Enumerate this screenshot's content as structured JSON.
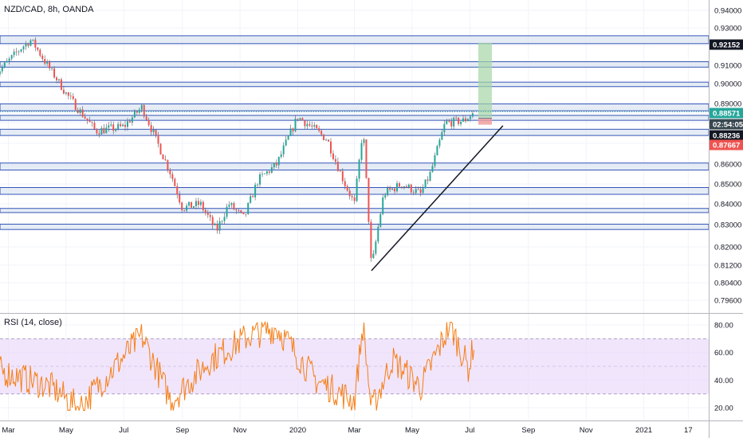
{
  "header": {
    "title": "NZD/CAD, 8h, OANDA"
  },
  "rsi_pane": {
    "title": "RSI (14, close)"
  },
  "colors": {
    "up": "#26a69a",
    "down": "#ef5350",
    "zone_fill": "#dce6f2",
    "zone_border": "#3656b8",
    "rsi_line": "#f57f17",
    "rsi_band": "#ecdcfb",
    "tag_green": "#26a69a",
    "tag_red": "#ef5350",
    "tag_black": "#131722",
    "tag_dark": "#37474f"
  },
  "chart_data": [
    {
      "type": "candlestick",
      "symbol": "NZD/CAD",
      "timeframe": "8h",
      "source": "OANDA",
      "x_ticks": [
        "Mar",
        "May",
        "Jul",
        "Sep",
        "Nov",
        "2020",
        "Mar",
        "May",
        "Jul",
        "Sep",
        "Nov",
        "2021",
        "17"
      ],
      "y_ticks": [
        "0.94000",
        "0.93000",
        "0.92000",
        "0.91000",
        "0.90000",
        "0.89000",
        "0.88000",
        "0.87000",
        "0.86000",
        "0.85000",
        "0.84000",
        "0.83000",
        "0.82000",
        "0.81200",
        "0.80400",
        "0.79600"
      ],
      "y_tick_values": [
        0.94,
        0.93,
        0.92,
        0.91,
        0.9,
        0.89,
        0.88,
        0.87,
        0.86,
        0.85,
        0.84,
        0.83,
        0.82,
        0.812,
        0.804,
        0.796
      ],
      "price_tags": [
        {
          "label": "0.92152",
          "value": 0.92152,
          "style": "black"
        },
        {
          "label": "0.88571",
          "value": 0.88571,
          "style": "green"
        },
        {
          "label": "02:54:05",
          "value": 0.8816,
          "style": "dark"
        },
        {
          "label": "0.88236",
          "value": 0.88236,
          "style": "black"
        },
        {
          "label": "0.87667",
          "value": 0.87667,
          "style": "red"
        }
      ],
      "zones": [
        {
          "from": 0.921,
          "to": 0.9255
        },
        {
          "from": 0.909,
          "to": 0.9118
        },
        {
          "from": 0.8985,
          "to": 0.9008
        },
        {
          "from": 0.8862,
          "to": 0.8898
        },
        {
          "from": 0.8812,
          "to": 0.8838
        },
        {
          "from": 0.8738,
          "to": 0.8768
        },
        {
          "from": 0.857,
          "to": 0.8605
        },
        {
          "from": 0.8448,
          "to": 0.8482
        },
        {
          "from": 0.8358,
          "to": 0.8378
        },
        {
          "from": 0.8278,
          "to": 0.8302
        }
      ],
      "trendline": {
        "from": {
          "date": "2020-03-19",
          "value": 0.8095
        },
        "to": {
          "date": "2020-08-05",
          "value": 0.8785
        }
      },
      "position": {
        "entry": 0.8823,
        "target": 0.9215,
        "stop": 0.879
      },
      "key_closes": [
        {
          "date": "2019-02-15",
          "value": 0.905
        },
        {
          "date": "2019-03-15",
          "value": 0.919
        },
        {
          "date": "2019-03-25",
          "value": 0.923
        },
        {
          "date": "2019-05-01",
          "value": 0.895
        },
        {
          "date": "2019-06-01",
          "value": 0.876
        },
        {
          "date": "2019-07-01",
          "value": 0.878
        },
        {
          "date": "2019-07-20",
          "value": 0.888
        },
        {
          "date": "2019-08-20",
          "value": 0.855
        },
        {
          "date": "2019-09-01",
          "value": 0.838
        },
        {
          "date": "2019-09-20",
          "value": 0.84
        },
        {
          "date": "2019-10-07",
          "value": 0.827
        },
        {
          "date": "2019-10-20",
          "value": 0.84
        },
        {
          "date": "2019-11-05",
          "value": 0.833
        },
        {
          "date": "2019-11-20",
          "value": 0.852
        },
        {
          "date": "2019-12-10",
          "value": 0.86
        },
        {
          "date": "2020-01-01",
          "value": 0.883
        },
        {
          "date": "2020-02-01",
          "value": 0.872
        },
        {
          "date": "2020-02-20",
          "value": 0.85
        },
        {
          "date": "2020-03-01",
          "value": 0.84
        },
        {
          "date": "2020-03-10",
          "value": 0.878
        },
        {
          "date": "2020-03-19",
          "value": 0.81
        },
        {
          "date": "2020-04-01",
          "value": 0.845
        },
        {
          "date": "2020-04-20",
          "value": 0.85
        },
        {
          "date": "2020-05-10",
          "value": 0.845
        },
        {
          "date": "2020-05-20",
          "value": 0.855
        },
        {
          "date": "2020-06-05",
          "value": 0.88
        },
        {
          "date": "2020-06-25",
          "value": 0.881
        },
        {
          "date": "2020-07-06",
          "value": 0.8857
        }
      ]
    },
    {
      "type": "line",
      "title": "RSI (14, close)",
      "y_ticks": [
        "80.00",
        "60.00",
        "40.00",
        "20.00"
      ],
      "y_tick_values": [
        80,
        60,
        40,
        20
      ],
      "band": [
        30,
        70
      ],
      "key_values": [
        {
          "date": "2019-02-15",
          "value": 48
        },
        {
          "date": "2019-04-15",
          "value": 35
        },
        {
          "date": "2019-05-15",
          "value": 20
        },
        {
          "date": "2019-07-20",
          "value": 72
        },
        {
          "date": "2019-08-20",
          "value": 25
        },
        {
          "date": "2019-10-01",
          "value": 55
        },
        {
          "date": "2019-11-10",
          "value": 72
        },
        {
          "date": "2019-12-10",
          "value": 78
        },
        {
          "date": "2020-01-20",
          "value": 40
        },
        {
          "date": "2020-03-01",
          "value": 25
        },
        {
          "date": "2020-03-10",
          "value": 80
        },
        {
          "date": "2020-03-19",
          "value": 18
        },
        {
          "date": "2020-04-10",
          "value": 55
        },
        {
          "date": "2020-05-10",
          "value": 35
        },
        {
          "date": "2020-06-10",
          "value": 80
        },
        {
          "date": "2020-06-30",
          "value": 48
        },
        {
          "date": "2020-07-06",
          "value": 70
        }
      ]
    }
  ]
}
